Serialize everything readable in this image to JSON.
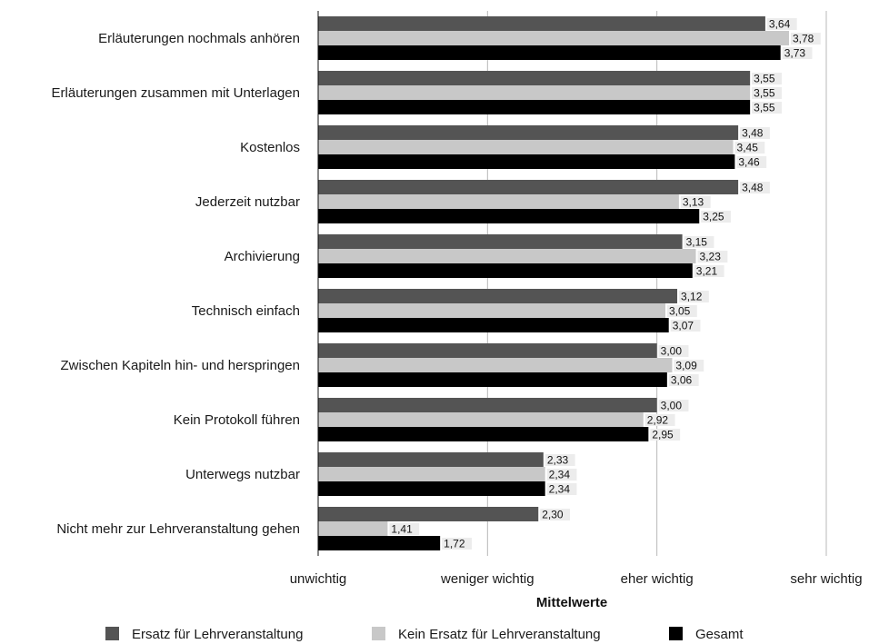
{
  "chart_data": {
    "type": "bar",
    "orientation": "horizontal",
    "categories": [
      "Erläuterungen nochmals anhören",
      "Erläuterungen zusammen mit Unterlagen",
      "Kostenlos",
      "Jederzeit nutzbar",
      "Archivierung",
      "Technisch einfach",
      "Zwischen Kapiteln hin- und herspringen",
      "Kein Protokoll führen",
      "Unterwegs nutzbar",
      "Nicht mehr zur Lehrveranstaltung gehen"
    ],
    "series": [
      {
        "name": "Ersatz für Lehrveranstaltung",
        "color": "#545454",
        "values": [
          3.64,
          3.55,
          3.48,
          3.48,
          3.15,
          3.12,
          3.0,
          3.0,
          2.33,
          2.3
        ],
        "labels": [
          "3,64",
          "3,55",
          "3,48",
          "3,48",
          "3,15",
          "3,12",
          "3,00",
          "3,00",
          "2,33",
          "2,30"
        ]
      },
      {
        "name": "Kein Ersatz für Lehrveranstaltung",
        "color": "#c8c8c8",
        "values": [
          3.78,
          3.55,
          3.45,
          3.13,
          3.23,
          3.05,
          3.09,
          2.92,
          2.34,
          1.41
        ],
        "labels": [
          "3,78",
          "3,55",
          "3,45",
          "3,13",
          "3,23",
          "3,05",
          "3,09",
          "2,92",
          "2,34",
          "1,41"
        ]
      },
      {
        "name": "Gesamt",
        "color": "#000000",
        "values": [
          3.73,
          3.55,
          3.46,
          3.25,
          3.21,
          3.07,
          3.06,
          2.95,
          2.34,
          1.72
        ],
        "labels": [
          "3,73",
          "3,55",
          "3,46",
          "3,25",
          "3,21",
          "3,07",
          "3,06",
          "2,95",
          "2,34",
          "1,72"
        ]
      }
    ],
    "xlim": [
      1,
      4
    ],
    "xticks": [
      1,
      2,
      3,
      4
    ],
    "xtick_labels": [
      "unwichtig",
      "weniger wichtig",
      "eher wichtig",
      "sehr wichtig"
    ],
    "xlabel": "Mittelwerte",
    "grid": "vertical",
    "legend_position": "bottom"
  }
}
